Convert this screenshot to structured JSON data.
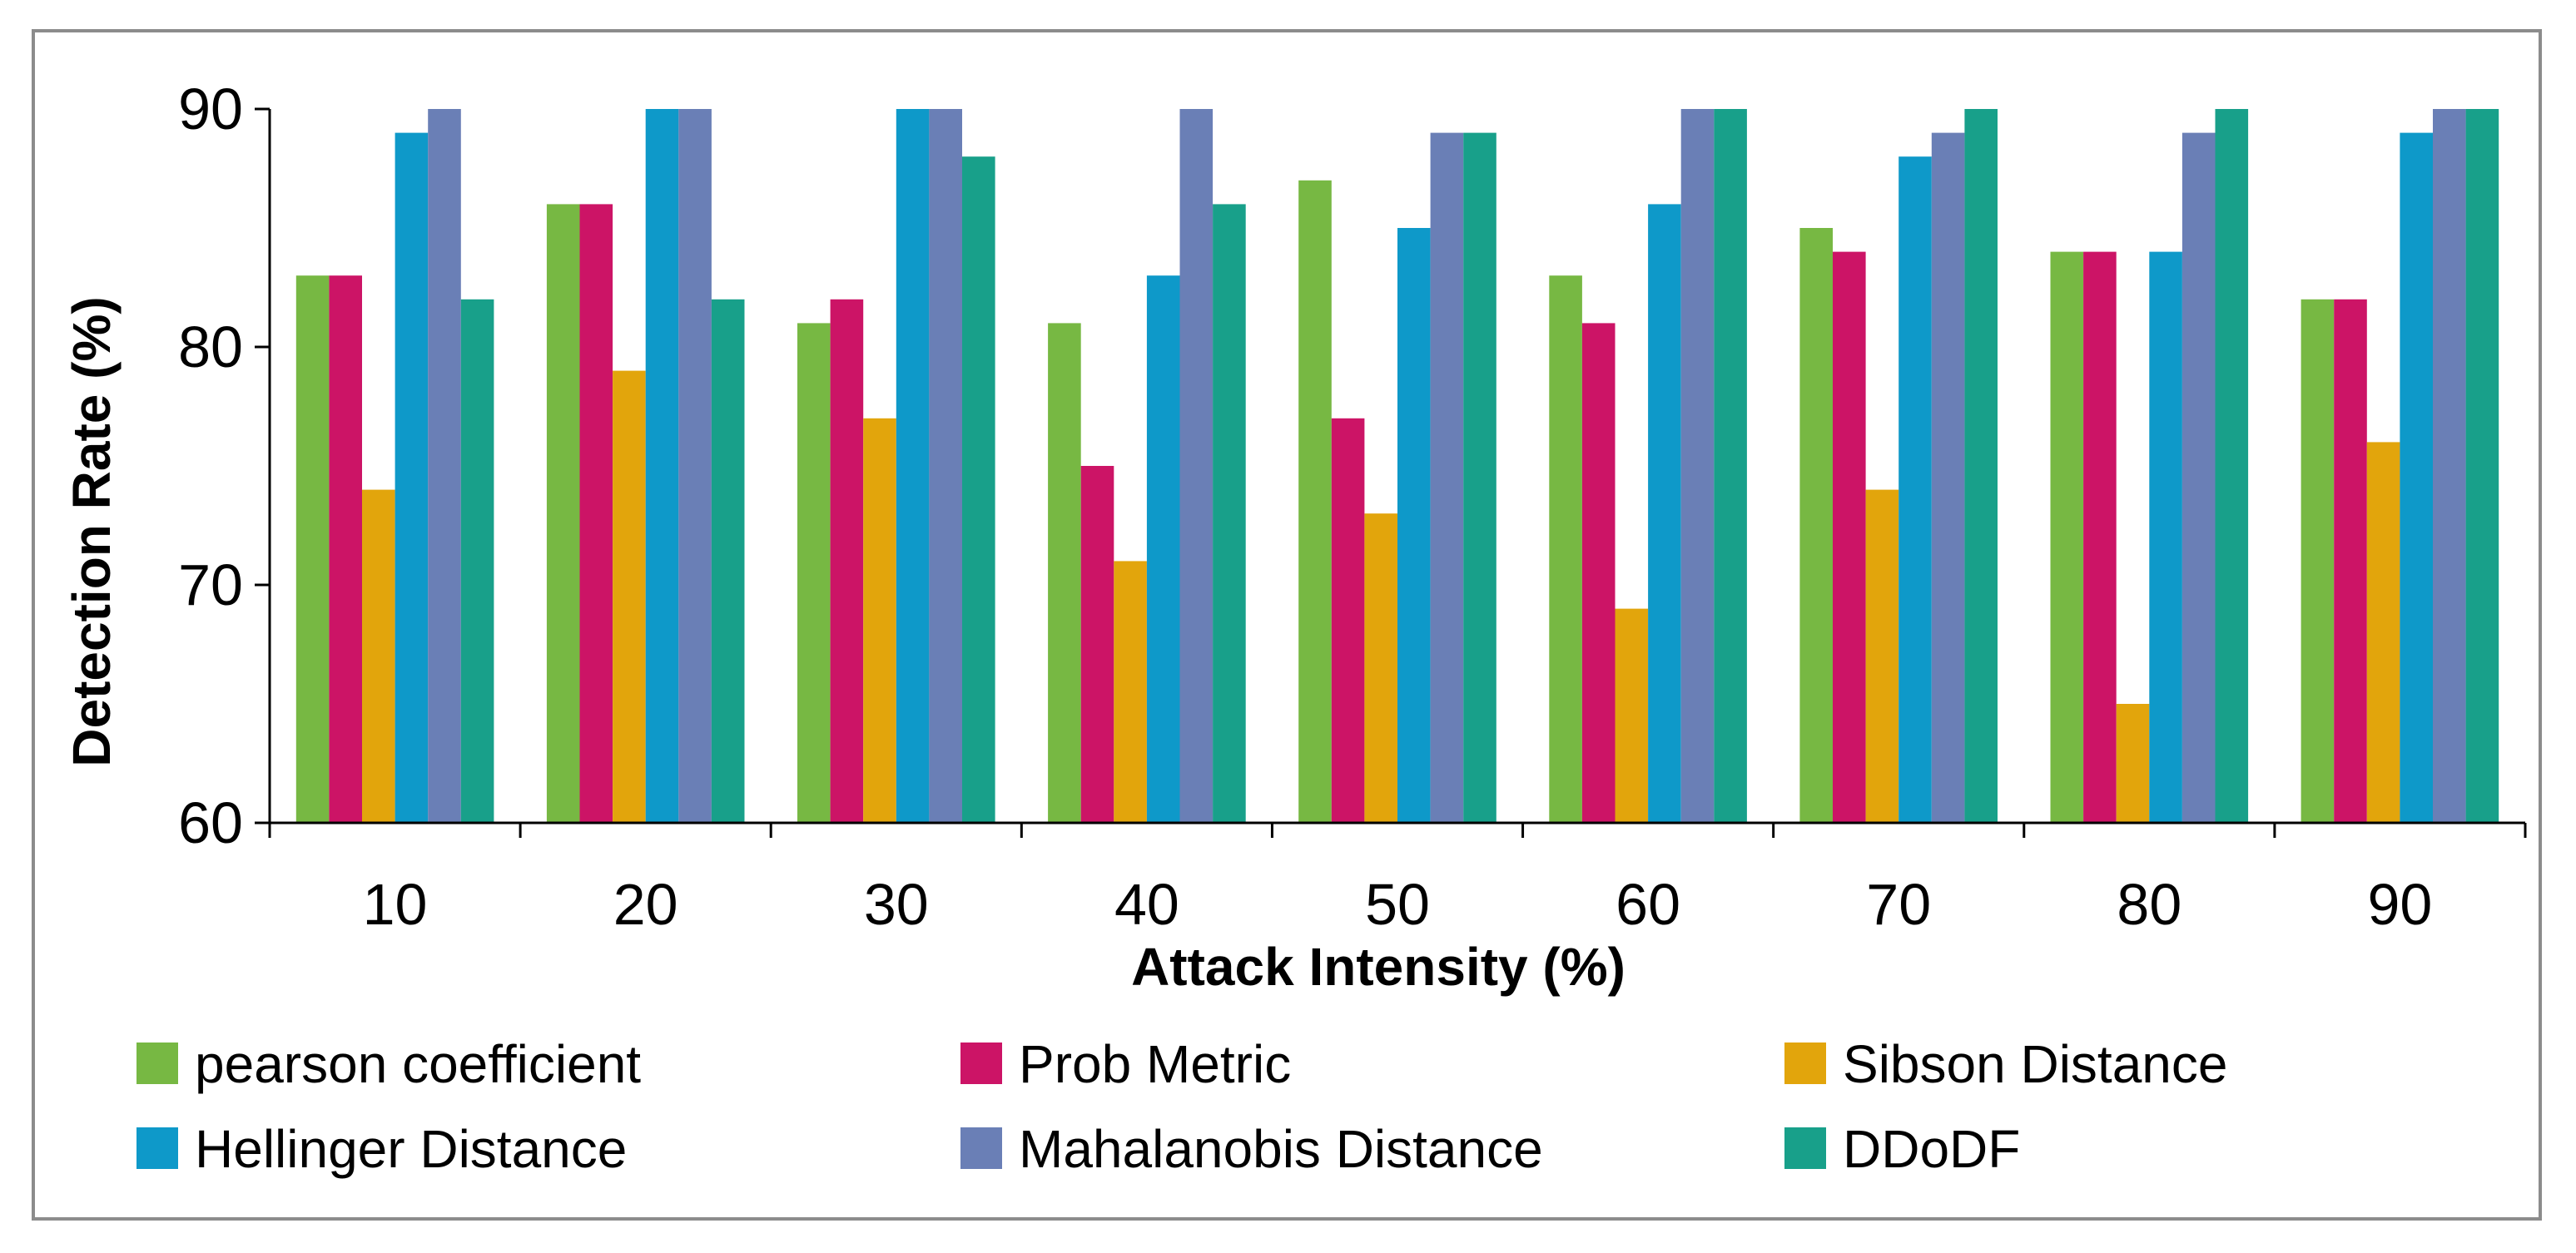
{
  "chart_data": {
    "type": "bar",
    "title": "",
    "xlabel": "Attack Intensity (%)",
    "ylabel": "Detection Rate (%)",
    "ylim": [
      60,
      90
    ],
    "yticks": [
      60,
      70,
      80,
      90
    ],
    "grid": false,
    "legend_position": "bottom",
    "categories": [
      "10",
      "20",
      "30",
      "40",
      "50",
      "60",
      "70",
      "80",
      "90"
    ],
    "series": [
      {
        "name": "pearson coefficient",
        "color": "#77b843",
        "values": [
          83,
          86,
          81,
          81,
          87,
          83,
          85,
          84,
          82
        ]
      },
      {
        "name": "Prob Metric",
        "color": "#cc1466",
        "values": [
          83,
          86,
          82,
          75,
          77,
          81,
          84,
          84,
          82
        ]
      },
      {
        "name": "Sibson Distance",
        "color": "#e2a50c",
        "values": [
          74,
          79,
          77,
          71,
          73,
          69,
          74,
          65,
          76
        ]
      },
      {
        "name": "Hellinger Distance",
        "color": "#0e99c9",
        "values": [
          89,
          90,
          90,
          83,
          85,
          86,
          88,
          84,
          89
        ]
      },
      {
        "name": "Mahalanobis Distance",
        "color": "#6a7fb6",
        "values": [
          90,
          90,
          90,
          90,
          89,
          90,
          89,
          89,
          90
        ]
      },
      {
        "name": "DDoDF",
        "color": "#18a08a",
        "values": [
          82,
          82,
          88,
          86,
          89,
          90,
          90,
          90,
          90
        ]
      }
    ]
  }
}
